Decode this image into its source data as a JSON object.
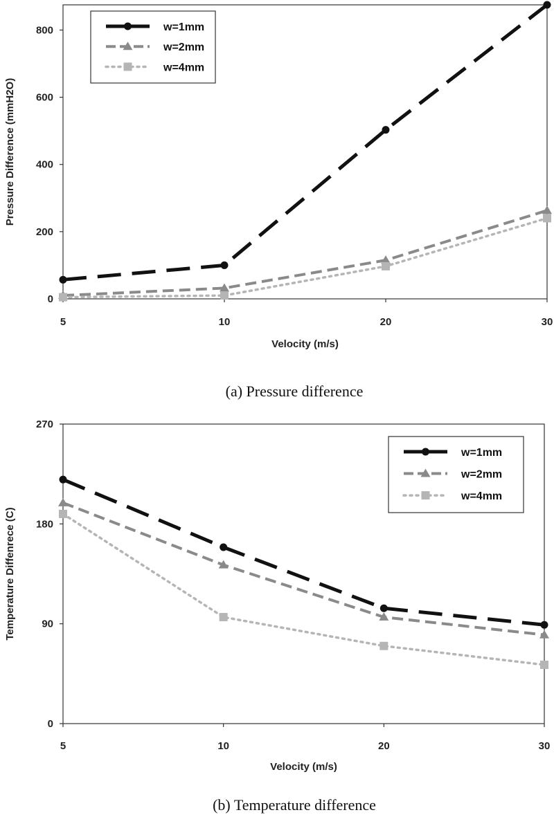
{
  "chart_data": [
    {
      "type": "line",
      "title": "(a) Pressure difference",
      "xlabel": "Velocity (m/s)",
      "ylabel": "Pressure Difference (mmH2O)",
      "categories": [
        "5",
        "10",
        "20",
        "30"
      ],
      "ylim": [
        0,
        875
      ],
      "yticks": [
        "0",
        "200",
        "400",
        "600",
        "800"
      ],
      "legend_position": "top-left",
      "series": [
        {
          "name": "w=1mm",
          "values": [
            57,
            100,
            503,
            875
          ],
          "color": "#111111",
          "marker": "circle",
          "dash": "long-dash"
        },
        {
          "name": "w=2mm",
          "values": [
            10,
            32,
            115,
            263
          ],
          "color": "#8a8a8a",
          "marker": "triangle",
          "dash": "dash"
        },
        {
          "name": "w=4mm",
          "values": [
            5,
            10,
            97,
            240
          ],
          "color": "#b5b5b5",
          "marker": "square",
          "dash": "dot"
        }
      ]
    },
    {
      "type": "line",
      "title": "(b) Temperature difference",
      "xlabel": "Velocity (m/s)",
      "ylabel": "Temperature Diffenrece (C)",
      "categories": [
        "5",
        "10",
        "20",
        "30"
      ],
      "ylim": [
        0,
        270
      ],
      "yticks": [
        "0",
        "90",
        "180",
        "270"
      ],
      "legend_position": "top-right",
      "series": [
        {
          "name": "w=1mm",
          "values": [
            220,
            159,
            104,
            89
          ],
          "color": "#111111",
          "marker": "circle",
          "dash": "long-dash"
        },
        {
          "name": "w=2mm",
          "values": [
            199,
            143,
            96,
            80
          ],
          "color": "#8a8a8a",
          "marker": "triangle",
          "dash": "dash"
        },
        {
          "name": "w=4mm",
          "values": [
            189,
            96,
            70,
            53
          ],
          "color": "#b5b5b5",
          "marker": "square",
          "dash": "dot"
        }
      ]
    }
  ]
}
